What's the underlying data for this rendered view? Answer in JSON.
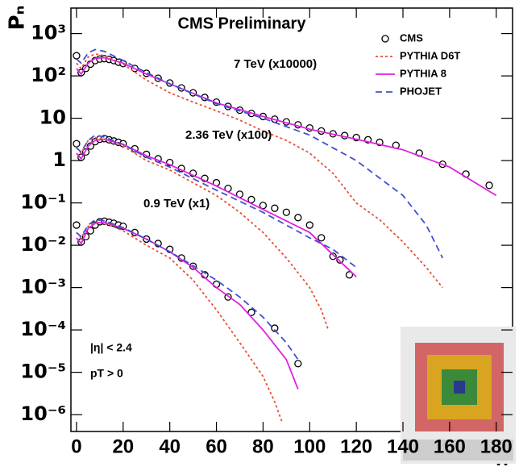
{
  "chart_data": {
    "type": "line",
    "title": "CMS Preliminary",
    "xlabel": "n",
    "ylabel": "Pₙ",
    "log_y": true,
    "xlim": [
      -2.4,
      187
    ],
    "xticks": [
      0,
      20,
      40,
      60,
      80,
      100,
      120,
      140,
      160,
      180
    ],
    "ylim": [
      4e-07,
      4000
    ],
    "yticks": [
      {
        "value": 1e-06,
        "label": "10⁻⁶"
      },
      {
        "value": 1e-05,
        "label": "10⁻⁵"
      },
      {
        "value": 0.0001,
        "label": "10⁻⁴"
      },
      {
        "value": 0.001,
        "label": "10⁻³"
      },
      {
        "value": 0.01,
        "label": "10⁻²"
      },
      {
        "value": 0.1,
        "label": "10⁻¹"
      },
      1,
      10,
      {
        "value": 100,
        "label": "10²"
      },
      {
        "value": 1000,
        "label": "10³"
      }
    ],
    "annotations": [
      "7 TeV (x10000)",
      "2.36 TeV (x100)",
      "0.9 TeV (x1)",
      "|η| < 2.4",
      "pT > 0"
    ],
    "series": [
      {
        "name": "CMS",
        "color": "#000000",
        "style": "markers",
        "curves": [
          {
            "x": [
              0,
              2,
              4,
              6,
              8,
              10,
              12,
              14,
              16,
              18,
              20,
              25,
              30,
              35,
              40,
              45,
              50,
              55,
              60,
              65,
              70,
              75,
              80,
              85,
              90,
              95,
              100,
              105,
              110,
              115,
              120,
              125,
              130,
              137,
              147,
              157,
              167,
              177
            ],
            "values": [
              300,
              120,
              150,
              190,
              230,
              250,
              255,
              245,
              230,
              210,
              195,
              150,
              115,
              88,
              68,
              52,
              40,
              31,
              24,
              19,
              15.5,
              13,
              11,
              9.5,
              8.2,
              7,
              5.9,
              5,
              4.3,
              3.9,
              3.5,
              3.1,
              2.7,
              2.3,
              1.5,
              0.82,
              0.48,
              0.26
            ]
          },
          {
            "x": [
              0,
              2,
              4,
              6,
              8,
              10,
              12,
              14,
              16,
              18,
              20,
              25,
              30,
              35,
              40,
              45,
              50,
              55,
              60,
              65,
              70,
              75,
              80,
              85,
              90,
              95,
              100,
              105,
              110,
              113,
              117
            ],
            "values": [
              2.5,
              1.2,
              1.6,
              2.2,
              2.8,
              3.2,
              3.3,
              3.1,
              2.9,
              2.7,
              2.5,
              1.9,
              1.4,
              1.1,
              0.9,
              0.65,
              0.5,
              0.38,
              0.3,
              0.22,
              0.16,
              0.12,
              0.087,
              0.075,
              0.06,
              0.045,
              0.03,
              0.015,
              0.0055,
              0.0045,
              0.002
            ]
          },
          {
            "x": [
              0,
              2,
              4,
              6,
              8,
              10,
              12,
              14,
              16,
              18,
              20,
              25,
              30,
              35,
              40,
              45,
              50,
              55,
              60,
              65,
              75,
              85,
              95
            ],
            "values": [
              0.03,
              0.012,
              0.016,
              0.022,
              0.03,
              0.036,
              0.037,
              0.035,
              0.033,
              0.03,
              0.028,
              0.02,
              0.014,
              0.011,
              0.008,
              0.005,
              0.0032,
              0.002,
              0.0012,
              0.0006,
              0.00026,
              0.00011,
              1.6e-05
            ]
          }
        ]
      },
      {
        "name": "PYTHIA D6T",
        "color": "#e8503a",
        "style": "dotted",
        "curves": [
          {
            "x": [
              0,
              2,
              5,
              8,
              12,
              20,
              30,
              40,
              50,
              60,
              70,
              80,
              90,
              100,
              110,
              120,
              130,
              140,
              150,
              157
            ],
            "values": [
              200,
              150,
              280,
              330,
              300,
              190,
              80,
              40,
              24,
              15,
              9,
              5,
              3,
              1.5,
              0.5,
              0.1,
              0.04,
              0.012,
              0.003,
              0.001
            ]
          },
          {
            "x": [
              0,
              2,
              5,
              8,
              12,
              20,
              30,
              40,
              50,
              60,
              70,
              80,
              90,
              100,
              105,
              108
            ],
            "values": [
              2,
              1.5,
              3,
              3.5,
              3.2,
              2.2,
              1,
              0.6,
              0.3,
              0.15,
              0.06,
              0.02,
              0.005,
              0.001,
              0.0003,
              0.0001
            ]
          },
          {
            "x": [
              0,
              2,
              5,
              8,
              12,
              20,
              30,
              40,
              50,
              60,
              70,
              80,
              85,
              88
            ],
            "values": [
              0.02,
              0.015,
              0.028,
              0.035,
              0.033,
              0.022,
              0.01,
              0.005,
              0.0015,
              0.0003,
              5e-05,
              8e-06,
              2e-06,
              7e-07
            ]
          }
        ]
      },
      {
        "name": "PYTHIA 8",
        "color": "#e020e0",
        "style": "solid",
        "curves": [
          {
            "x": [
              0,
              2,
              5,
              8,
              12,
              20,
              30,
              40,
              60,
              80,
              100,
              120,
              140,
              160,
              180
            ],
            "values": [
              150,
              110,
              200,
              260,
              270,
              200,
              110,
              65,
              23,
              11,
              5.5,
              3.2,
              1.8,
              0.7,
              0.15
            ]
          },
          {
            "x": [
              0,
              2,
              5,
              8,
              12,
              20,
              30,
              40,
              60,
              80,
              100,
              110,
              120
            ],
            "values": [
              1.5,
              1.1,
              2.2,
              3,
              3.2,
              2.4,
              1.3,
              0.8,
              0.25,
              0.07,
              0.02,
              0.006,
              0.0018
            ]
          },
          {
            "x": [
              0,
              2,
              5,
              8,
              12,
              20,
              30,
              40,
              50,
              60,
              70,
              80,
              90,
              95
            ],
            "values": [
              0.015,
              0.011,
              0.025,
              0.033,
              0.035,
              0.025,
              0.014,
              0.007,
              0.003,
              0.001,
              0.0004,
              0.0001,
              2e-05,
              4e-06
            ]
          }
        ]
      },
      {
        "name": "PHOJET",
        "color": "#4050d0",
        "style": "dashed",
        "curves": [
          {
            "x": [
              0,
              2,
              5,
              8,
              12,
              20,
              30,
              40,
              60,
              80,
              100,
              120,
              140,
              150,
              157
            ],
            "values": [
              250,
              200,
              350,
              420,
              380,
              230,
              120,
              65,
              22,
              10,
              4,
              1,
              0.15,
              0.03,
              0.005
            ]
          },
          {
            "x": [
              0,
              2,
              5,
              8,
              12,
              20,
              30,
              40,
              60,
              80,
              100,
              110,
              120
            ],
            "values": [
              2,
              1.6,
              3,
              4,
              3.6,
              2.4,
              1.2,
              0.7,
              0.2,
              0.06,
              0.015,
              0.008,
              0.003
            ]
          },
          {
            "x": [
              0,
              2,
              5,
              8,
              12,
              20,
              30,
              40,
              50,
              60,
              70,
              80,
              90,
              95
            ],
            "values": [
              0.02,
              0.016,
              0.03,
              0.04,
              0.038,
              0.026,
              0.014,
              0.007,
              0.0033,
              0.0015,
              0.0006,
              0.0002,
              5e-05,
              2e-05
            ]
          }
        ]
      }
    ]
  }
}
